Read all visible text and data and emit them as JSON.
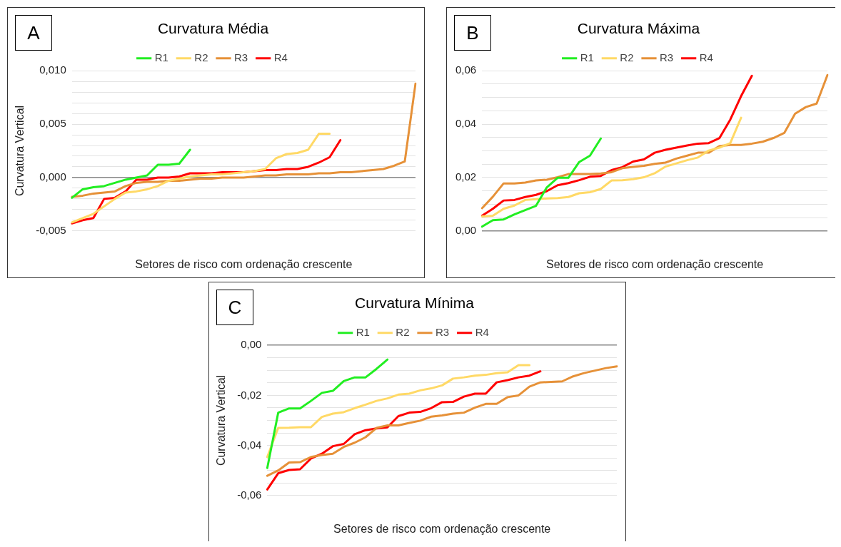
{
  "chart_data": [
    {
      "type": "line",
      "title": "Curvatura Média",
      "xlabel": "Setores de risco com ordenação crescente",
      "ylabel": "Curvatura Vertical",
      "annotations": [
        "A"
      ],
      "grid": "y",
      "legend": "top",
      "tick_labels": "y",
      "marker": "none",
      "line_style": "solid",
      "categories": [
        null,
        null,
        null,
        null,
        null,
        null,
        null,
        null,
        null,
        null,
        null,
        null,
        null,
        null,
        null,
        null,
        null,
        null,
        null,
        null,
        null,
        null,
        null,
        null,
        null,
        null,
        null,
        null,
        null,
        null,
        null,
        null,
        null
      ],
      "ylim": [
        -0.005,
        0.01
      ],
      "yticks": [
        {
          "value": -0.005,
          "label": "-0,005"
        },
        {
          "value": -0.004,
          "label": null
        },
        {
          "value": -0.003,
          "label": null
        },
        {
          "value": -0.002,
          "label": null
        },
        {
          "value": -0.001,
          "label": null
        },
        {
          "value": 0,
          "label": "0,000"
        },
        {
          "value": 0.001,
          "label": null
        },
        {
          "value": 0.002,
          "label": null
        },
        {
          "value": 0.003,
          "label": null
        },
        {
          "value": 0.004,
          "label": null
        },
        {
          "value": 0.005,
          "label": "0,005"
        },
        {
          "value": 0.006,
          "label": null
        },
        {
          "value": 0.007,
          "label": null
        },
        {
          "value": 0.008,
          "label": null
        },
        {
          "value": 0.009,
          "label": null
        },
        {
          "value": 0.01,
          "label": "0,010"
        }
      ],
      "series": [
        {
          "name": "R1",
          "color": "#22ee22",
          "values": [
            -0.0019,
            -0.0011,
            -0.0009,
            -0.0008,
            -0.0005,
            -0.0002,
            0.0,
            0.0002,
            0.0012,
            0.0012,
            0.0013,
            0.0026,
            null,
            null,
            null,
            null,
            null,
            null,
            null,
            null,
            null,
            null,
            null,
            null,
            null,
            null,
            null,
            null,
            null,
            null,
            null,
            null,
            null
          ]
        },
        {
          "name": "R2",
          "color": "#ffd966",
          "values": [
            -0.0042,
            -0.0038,
            -0.0034,
            -0.0027,
            -0.002,
            -0.0014,
            -0.0013,
            -0.0011,
            -0.0008,
            -0.0003,
            -0.0001,
            0.0001,
            0.0002,
            0.0003,
            0.0003,
            0.0004,
            0.0005,
            0.0006,
            0.0008,
            0.0018,
            0.0022,
            0.0023,
            0.0026,
            0.0041,
            0.0041,
            null,
            null,
            null,
            null,
            null,
            null,
            null,
            null
          ]
        },
        {
          "name": "R3",
          "color": "#e69138",
          "values": [
            -0.0018,
            -0.0017,
            -0.0015,
            -0.0014,
            -0.0013,
            -0.0008,
            -0.0005,
            -0.0004,
            -0.0004,
            -0.0003,
            -0.0003,
            -0.0002,
            -0.0001,
            -0.0001,
            0.0,
            0.0,
            0.0,
            0.0001,
            0.0002,
            0.0002,
            0.0003,
            0.0003,
            0.0003,
            0.0004,
            0.0004,
            0.0005,
            0.0005,
            0.0006,
            0.0007,
            0.0008,
            0.0011,
            0.0015,
            0.0088
          ]
        },
        {
          "name": "R4",
          "color": "#ff0000",
          "values": [
            -0.0043,
            -0.004,
            -0.0038,
            -0.002,
            -0.0019,
            -0.0013,
            -0.0002,
            -0.0002,
            0.0,
            0.0,
            0.0001,
            0.0004,
            0.0004,
            0.0004,
            0.0005,
            0.0005,
            0.0005,
            0.0006,
            0.0007,
            0.0007,
            0.0008,
            0.0008,
            0.001,
            0.0014,
            0.0019,
            0.0035,
            null,
            null,
            null,
            null,
            null,
            null,
            null
          ]
        }
      ]
    },
    {
      "type": "line",
      "title": "Curvatura Máxima",
      "xlabel": "Setores de risco com ordenação crescente",
      "annotations": [
        "B"
      ],
      "grid": "y",
      "legend": "top",
      "tick_labels": "y",
      "marker": "none",
      "line_style": "solid",
      "categories": [
        null,
        null,
        null,
        null,
        null,
        null,
        null,
        null,
        null,
        null,
        null,
        null,
        null,
        null,
        null,
        null,
        null,
        null,
        null,
        null,
        null,
        null,
        null,
        null,
        null,
        null,
        null,
        null,
        null,
        null,
        null,
        null,
        null
      ],
      "ylim": [
        0,
        0.06
      ],
      "yticks": [
        {
          "value": 0,
          "label": "0,00"
        },
        {
          "value": 0.005,
          "label": null
        },
        {
          "value": 0.01,
          "label": null
        },
        {
          "value": 0.015,
          "label": null
        },
        {
          "value": 0.02,
          "label": "0,02"
        },
        {
          "value": 0.025,
          "label": null
        },
        {
          "value": 0.03,
          "label": null
        },
        {
          "value": 0.035,
          "label": null
        },
        {
          "value": 0.04,
          "label": "0,04"
        },
        {
          "value": 0.045,
          "label": null
        },
        {
          "value": 0.05,
          "label": null
        },
        {
          "value": 0.055,
          "label": null
        },
        {
          "value": 0.06,
          "label": "0,06"
        }
      ],
      "series": [
        {
          "name": "R1",
          "color": "#22ee22",
          "values": [
            0.0016,
            0.004,
            0.0043,
            0.0062,
            0.0078,
            0.0094,
            0.0163,
            0.0199,
            0.0199,
            0.0258,
            0.0282,
            0.0346,
            null,
            null,
            null,
            null,
            null,
            null,
            null,
            null,
            null,
            null,
            null,
            null,
            null,
            null,
            null,
            null,
            null,
            null,
            null,
            null,
            null
          ]
        },
        {
          "name": "R2",
          "color": "#ffd966",
          "values": [
            0.0054,
            0.0057,
            0.0083,
            0.0095,
            0.0116,
            0.0119,
            0.0122,
            0.0123,
            0.0127,
            0.0141,
            0.0145,
            0.0157,
            0.0189,
            0.019,
            0.0194,
            0.0201,
            0.0216,
            0.0241,
            0.0253,
            0.0265,
            0.0275,
            0.0301,
            0.0312,
            0.0329,
            0.0424,
            null,
            null,
            null,
            null,
            null,
            null,
            null,
            null
          ]
        },
        {
          "name": "R3",
          "color": "#e69138",
          "values": [
            0.0085,
            0.0128,
            0.0178,
            0.0178,
            0.0181,
            0.0189,
            0.0192,
            0.0201,
            0.0213,
            0.0213,
            0.0213,
            0.0215,
            0.022,
            0.0235,
            0.024,
            0.0244,
            0.0251,
            0.0256,
            0.0271,
            0.0282,
            0.0293,
            0.0293,
            0.0318,
            0.0322,
            0.0322,
            0.0327,
            0.0334,
            0.0348,
            0.0367,
            0.0439,
            0.0464,
            0.0477,
            0.0584
          ]
        },
        {
          "name": "R4",
          "color": "#ff0000",
          "values": [
            0.0057,
            0.0083,
            0.0114,
            0.0116,
            0.0127,
            0.0135,
            0.0149,
            0.0171,
            0.0179,
            0.019,
            0.0203,
            0.0206,
            0.0228,
            0.0239,
            0.026,
            0.0268,
            0.0293,
            0.0304,
            0.0312,
            0.032,
            0.0327,
            0.0329,
            0.0348,
            0.0417,
            0.0505,
            0.0581,
            null,
            null,
            null,
            null,
            null,
            null,
            null
          ]
        }
      ]
    },
    {
      "type": "line",
      "title": "Curvatura Mínima",
      "xlabel": "Setores de risco com ordenação crescente",
      "ylabel": "Curvatura Vertical",
      "annotations": [
        "C"
      ],
      "grid": "y",
      "legend": "top",
      "tick_labels": "y",
      "marker": "none",
      "line_style": "solid",
      "categories": [
        null,
        null,
        null,
        null,
        null,
        null,
        null,
        null,
        null,
        null,
        null,
        null,
        null,
        null,
        null,
        null,
        null,
        null,
        null,
        null,
        null,
        null,
        null,
        null,
        null,
        null,
        null,
        null,
        null,
        null,
        null,
        null,
        null
      ],
      "ylim": [
        -0.06,
        0
      ],
      "yticks": [
        {
          "value": -0.06,
          "label": "-0,06"
        },
        {
          "value": -0.055,
          "label": null
        },
        {
          "value": -0.05,
          "label": null
        },
        {
          "value": -0.045,
          "label": null
        },
        {
          "value": -0.04,
          "label": "-0,04"
        },
        {
          "value": -0.035,
          "label": null
        },
        {
          "value": -0.03,
          "label": null
        },
        {
          "value": -0.025,
          "label": null
        },
        {
          "value": -0.02,
          "label": "-0,02"
        },
        {
          "value": -0.015,
          "label": null
        },
        {
          "value": -0.01,
          "label": null
        },
        {
          "value": -0.005,
          "label": null
        },
        {
          "value": 0,
          "label": "0,00"
        }
      ],
      "series": [
        {
          "name": "R1",
          "color": "#22ee22",
          "values": [
            -0.049,
            -0.0269,
            -0.0252,
            -0.0252,
            -0.0222,
            -0.019,
            -0.0182,
            -0.0143,
            -0.0128,
            -0.0128,
            -0.0094,
            -0.0057,
            null,
            null,
            null,
            null,
            null,
            null,
            null,
            null,
            null,
            null,
            null,
            null,
            null,
            null,
            null,
            null,
            null,
            null,
            null,
            null,
            null
          ]
        },
        {
          "name": "R2",
          "color": "#ffd966",
          "values": [
            -0.0446,
            -0.033,
            -0.0329,
            -0.0327,
            -0.0327,
            -0.0286,
            -0.0273,
            -0.0267,
            -0.0251,
            -0.0237,
            -0.0222,
            -0.0212,
            -0.0197,
            -0.0193,
            -0.018,
            -0.0172,
            -0.016,
            -0.0133,
            -0.0128,
            -0.0121,
            -0.0118,
            -0.0111,
            -0.0108,
            -0.0079,
            -0.0079,
            null,
            null,
            null,
            null,
            null,
            null,
            null,
            null
          ]
        },
        {
          "name": "R3",
          "color": "#e69138",
          "values": [
            -0.0521,
            -0.05,
            -0.0468,
            -0.0467,
            -0.0446,
            -0.0438,
            -0.0433,
            -0.0406,
            -0.0389,
            -0.0367,
            -0.033,
            -0.032,
            -0.032,
            -0.031,
            -0.0301,
            -0.0285,
            -0.028,
            -0.0273,
            -0.0269,
            -0.0249,
            -0.0234,
            -0.0234,
            -0.0207,
            -0.02,
            -0.0165,
            -0.0148,
            -0.0146,
            -0.0144,
            -0.0124,
            -0.0111,
            -0.0101,
            -0.0091,
            -0.0084
          ]
        },
        {
          "name": "R4",
          "color": "#ff0000",
          "values": [
            -0.0576,
            -0.0511,
            -0.0498,
            -0.0495,
            -0.0452,
            -0.0433,
            -0.0403,
            -0.0394,
            -0.0355,
            -0.0339,
            -0.0332,
            -0.0328,
            -0.0283,
            -0.0269,
            -0.0266,
            -0.0251,
            -0.0227,
            -0.0226,
            -0.0205,
            -0.0193,
            -0.0193,
            -0.0148,
            -0.0139,
            -0.0128,
            -0.0121,
            -0.0104,
            null,
            null,
            null,
            null,
            null,
            null,
            null
          ]
        }
      ]
    }
  ]
}
